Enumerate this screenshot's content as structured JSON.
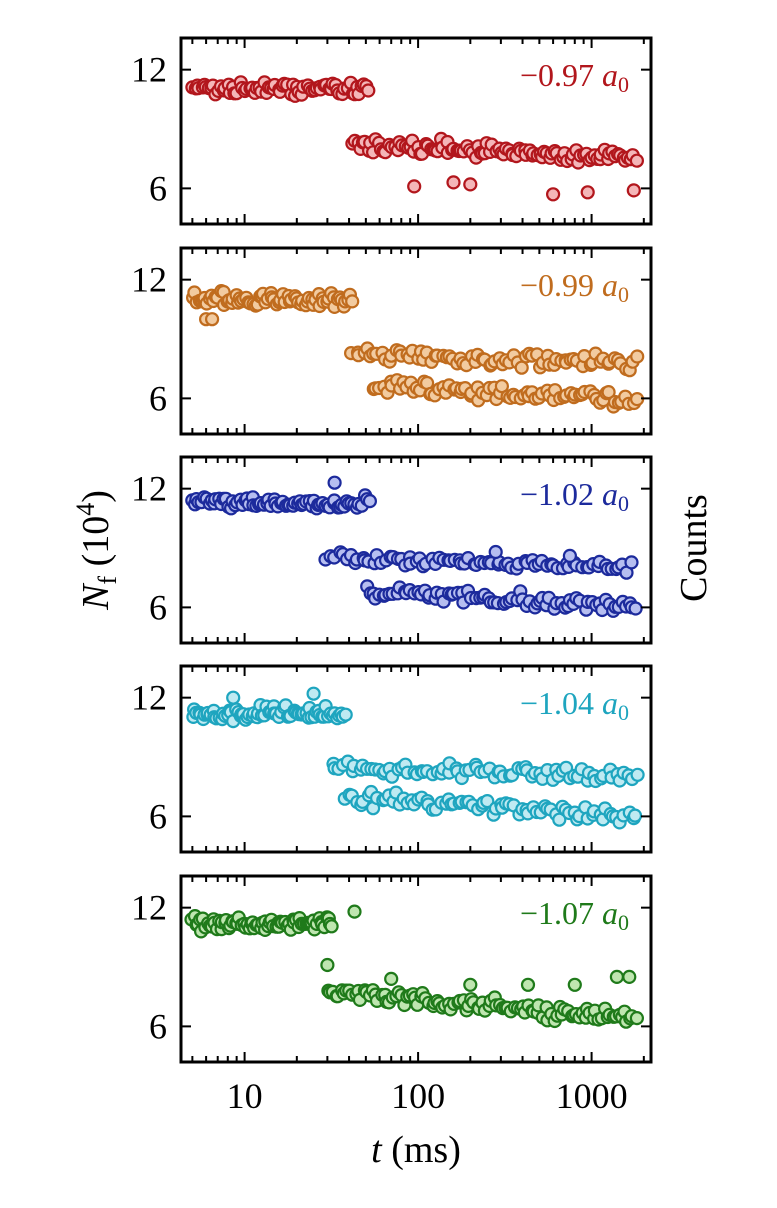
{
  "chart_data": {
    "type": "scatter",
    "layout": "five vertically stacked panels sharing a logarithmic time axis",
    "xscale": "log",
    "xlim": [
      4.3,
      2200
    ],
    "xticks": [
      10,
      100,
      1000
    ],
    "xtick_labels": [
      "10",
      "100",
      "1000"
    ],
    "xlabel_var": "t",
    "xlabel_unit": " (ms)",
    "ylabel_var": "N",
    "ylabel_sub": "f",
    "ylabel_unit": " (10",
    "ylabel_exp": "4",
    "ylabel_close": ")",
    "right_label": "Counts",
    "ylim": [
      4.2,
      13.6
    ],
    "yticks": [
      6,
      12
    ],
    "ytick_labels": [
      "6",
      "12"
    ],
    "grid": false,
    "legend": "none; each panel is labelled in its top-right corner",
    "panels": [
      {
        "label": "−0.97",
        "label_unit": "a",
        "label_sub": "0",
        "edge_color": "#b2161c",
        "fill_color": "#f4b6b8",
        "early": {
          "x_range": [
            5,
            52
          ],
          "y_mean": 11.0,
          "y_spread": 0.55
        },
        "late": {
          "x_range": [
            42,
            1800
          ],
          "y_start": 8.2,
          "y_end": 7.6,
          "y_spread": 0.55
        },
        "outliers": [
          [
            95,
            6.1
          ],
          [
            160,
            6.3
          ],
          [
            200,
            6.2
          ],
          [
            600,
            5.7
          ],
          [
            950,
            5.8
          ],
          [
            1750,
            5.9
          ]
        ]
      },
      {
        "label": "−0.99",
        "label_unit": "a",
        "label_sub": "0",
        "edge_color": "#c06c1e",
        "fill_color": "#f2cba0",
        "early": {
          "x_range": [
            5,
            42
          ],
          "y_mean": 11.0,
          "y_spread": 0.5
        },
        "late": {
          "x_range": [
            42,
            1800
          ],
          "y_start": 8.2,
          "y_end": 7.8,
          "y_spread": 0.5
        },
        "lower": {
          "x_range": [
            55,
            1800
          ],
          "y_start": 6.6,
          "y_end": 5.9,
          "y_spread": 0.55
        },
        "outliers": [
          [
            6,
            10.0
          ],
          [
            6.5,
            10.0
          ]
        ]
      },
      {
        "label": "−1.02",
        "label_unit": "a",
        "label_sub": "0",
        "edge_color": "#1c2a9c",
        "fill_color": "#b6bef0",
        "early": {
          "x_range": [
            5,
            52
          ],
          "y_mean": 11.3,
          "y_spread": 0.45
        },
        "late": {
          "x_range": [
            30,
            1700
          ],
          "y_start": 8.5,
          "y_end": 8.0,
          "y_spread": 0.45
        },
        "lower": {
          "x_range": [
            50,
            1800
          ],
          "y_start": 6.8,
          "y_end": 6.0,
          "y_spread": 0.5
        },
        "outliers": [
          [
            33,
            12.3
          ],
          [
            280,
            8.8
          ],
          [
            750,
            8.6
          ]
        ]
      },
      {
        "label": "−1.04",
        "label_unit": "a",
        "label_sub": "0",
        "edge_color": "#1ea5bf",
        "fill_color": "#bfeaf2",
        "early": {
          "x_range": [
            5,
            38
          ],
          "y_mean": 11.2,
          "y_spread": 0.55
        },
        "late": {
          "x_range": [
            32,
            1800
          ],
          "y_start": 8.5,
          "y_end": 8.0,
          "y_spread": 0.45
        },
        "lower": {
          "x_range": [
            38,
            1800
          ],
          "y_start": 7.0,
          "y_end": 6.0,
          "y_spread": 0.6
        },
        "outliers": [
          [
            8.6,
            12.0
          ],
          [
            25,
            12.2
          ]
        ]
      },
      {
        "label": "−1.07",
        "label_unit": "a",
        "label_sub": "0",
        "edge_color": "#1f7a1a",
        "fill_color": "#bfe6b0",
        "early": {
          "x_range": [
            5,
            32
          ],
          "y_mean": 11.2,
          "y_spread": 0.5
        },
        "late": {
          "x_range": [
            30,
            1800
          ],
          "y_start": 7.8,
          "y_end": 6.3,
          "y_spread": 0.6
        },
        "outliers": [
          [
            30,
            9.1
          ],
          [
            43,
            11.8
          ],
          [
            70,
            8.4
          ],
          [
            200,
            8.1
          ],
          [
            430,
            8.1
          ],
          [
            800,
            8.1
          ],
          [
            1400,
            8.5
          ],
          [
            1650,
            8.5
          ]
        ]
      }
    ]
  }
}
